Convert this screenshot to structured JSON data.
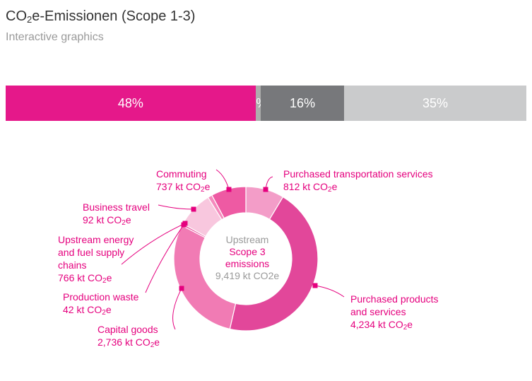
{
  "header": {
    "title_main": "CO",
    "title_sub": "2",
    "title_rest": "e-Emissionen (Scope 1-3)",
    "subtitle": "Interactive graphics"
  },
  "colors": {
    "magenta": "#e5007e",
    "scope3_slices": [
      "#f39dc8",
      "#e2479a",
      "#f17bb4",
      "#e9529e",
      "#f8c7de",
      "#f58abd",
      "#ee5aa3"
    ],
    "bar_segments": [
      "#e5188a",
      "#adadad",
      "#77787b",
      "#cacbcc"
    ]
  },
  "chart_data": [
    {
      "type": "bar",
      "orientation": "stacked-horizontal",
      "categories": [
        "48%",
        "1%",
        "16%",
        "35%"
      ],
      "values": [
        48,
        1,
        16,
        35
      ],
      "unit": "%"
    },
    {
      "type": "pie",
      "style": "donut",
      "center": {
        "line1": "Upstream",
        "line2": "Scope 3",
        "line3": "emissions",
        "line4": "9,419 kt CO2e"
      },
      "unit_main": "kt CO",
      "unit_sub": "2",
      "unit_tail": "e",
      "slices": [
        {
          "label": "Purchased transportation services",
          "value": 812,
          "value_text": "812"
        },
        {
          "label": "Purchased products and services",
          "value": 4234,
          "value_text": "4,234"
        },
        {
          "label": "Capital goods",
          "value": 2736,
          "value_text": "2,736"
        },
        {
          "label": "Production waste",
          "value": 42,
          "value_text": "42"
        },
        {
          "label": "Upstream energy and fuel supply chains",
          "value": 766,
          "value_text": "766"
        },
        {
          "label": "Business travel",
          "value": 92,
          "value_text": "92"
        },
        {
          "label": "Commuting",
          "value": 737,
          "value_text": "737"
        }
      ]
    }
  ]
}
